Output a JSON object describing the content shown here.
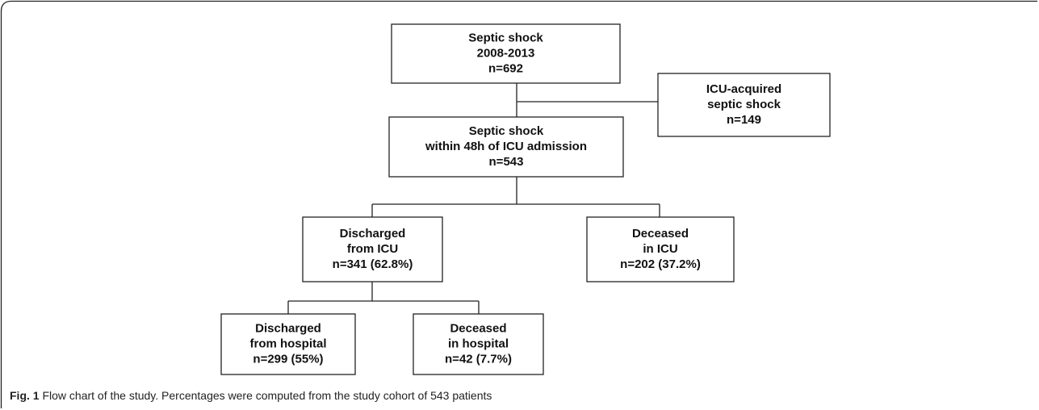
{
  "nodes": [
    {
      "lines": [
        "Septic shock",
        "2008-2013",
        "n=692"
      ]
    },
    {
      "lines": [
        "ICU-acquired",
        "septic shock",
        "n=149"
      ]
    },
    {
      "lines": [
        "Septic shock",
        "within 48h of ICU admission",
        "n=543"
      ]
    },
    {
      "lines": [
        "Discharged",
        "from ICU",
        "n=341 (62.8%)"
      ]
    },
    {
      "lines": [
        "Deceased",
        "in ICU",
        "n=202 (37.2%)"
      ]
    },
    {
      "lines": [
        "Discharged",
        "from hospital",
        "n=299 (55%)"
      ]
    },
    {
      "lines": [
        "Deceased",
        "in hospital",
        "n=42 (7.7%)"
      ]
    }
  ],
  "caption": {
    "label": "Fig. 1",
    "text": "Flow chart of the study. Percentages were computed from the study cohort of 543 patients"
  }
}
